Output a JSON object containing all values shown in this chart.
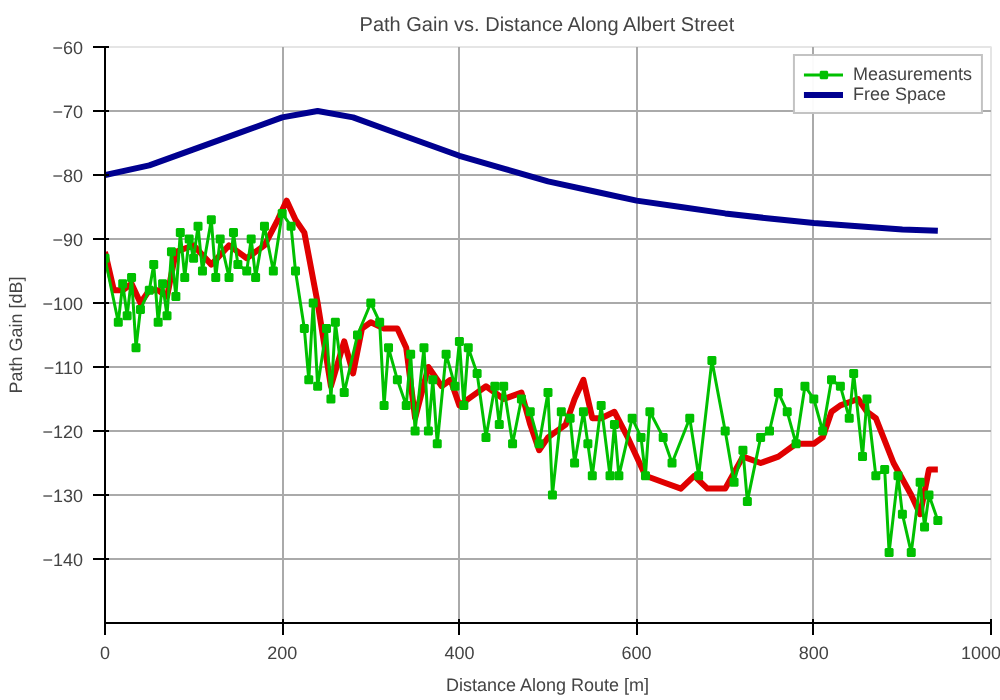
{
  "chart_data": {
    "type": "line",
    "title": "Path Gain vs. Distance Along Albert Street",
    "xlabel": "Distance Along Route [m]",
    "ylabel": "Path Gain [dB]",
    "xlim": [
      0,
      1000
    ],
    "xticks": [
      0,
      200,
      400,
      600,
      800,
      1000
    ],
    "ylim": [
      -150,
      -60
    ],
    "yticks": [
      -140,
      -130,
      -120,
      -110,
      -100,
      -90,
      -80,
      -70,
      -60
    ],
    "grid": true,
    "legend": "top right",
    "line_style": "solid",
    "series": [
      {
        "color": "#e00000",
        "marker": "none",
        "x": [
          0,
          10,
          20,
          30,
          40,
          50,
          60,
          70,
          80,
          100,
          120,
          140,
          160,
          180,
          195,
          205,
          215,
          225,
          240,
          255,
          270,
          280,
          290,
          300,
          315,
          330,
          340,
          350,
          365,
          380,
          390,
          400,
          420,
          430,
          450,
          470,
          480,
          490,
          500,
          520,
          530,
          540,
          550,
          560,
          575,
          590,
          610,
          630,
          650,
          665,
          680,
          700,
          720,
          740,
          760,
          780,
          800,
          810,
          820,
          830,
          850,
          860,
          870,
          890,
          910,
          920,
          930,
          940
        ],
        "values": [
          -92,
          -98,
          -98,
          -97,
          -100,
          -98,
          -98,
          -99,
          -92,
          -91,
          -94,
          -91,
          -93,
          -91,
          -87,
          -84,
          -87,
          -89,
          -100,
          -113,
          -106,
          -111,
          -104,
          -103,
          -104,
          -104,
          -107,
          -118,
          -110,
          -113,
          -112,
          -116,
          -114,
          -113,
          -115,
          -114,
          -119,
          -123,
          -121,
          -119,
          -115,
          -112,
          -118,
          -118,
          -117,
          -121,
          -127,
          -128,
          -129,
          -127,
          -129,
          -129,
          -124,
          -125,
          -124,
          -122,
          -122,
          -121,
          -117,
          -116,
          -115,
          -117,
          -118,
          -125,
          -130,
          -133,
          -126,
          -126
        ]
      },
      {
        "name": "Measurements",
        "color": "#00c000",
        "marker": "square",
        "x": [
          0,
          15,
          20,
          25,
          30,
          35,
          40,
          50,
          55,
          60,
          65,
          70,
          75,
          80,
          85,
          90,
          95,
          100,
          105,
          110,
          120,
          125,
          130,
          140,
          145,
          150,
          160,
          165,
          170,
          180,
          190,
          200,
          210,
          215,
          225,
          230,
          235,
          240,
          250,
          255,
          260,
          270,
          285,
          300,
          310,
          315,
          320,
          330,
          340,
          345,
          350,
          360,
          365,
          370,
          375,
          385,
          395,
          400,
          405,
          410,
          420,
          430,
          440,
          445,
          450,
          460,
          470,
          480,
          490,
          500,
          505,
          515,
          525,
          530,
          540,
          545,
          550,
          560,
          570,
          575,
          580,
          595,
          605,
          610,
          615,
          630,
          640,
          660,
          670,
          685,
          700,
          710,
          720,
          725,
          740,
          750,
          760,
          770,
          780,
          790,
          800,
          810,
          820,
          830,
          840,
          845,
          855,
          860,
          870,
          880,
          885,
          895,
          900,
          910,
          920,
          925,
          930,
          940
        ],
        "values": [
          -93,
          -103,
          -97,
          -102,
          -96,
          -107,
          -101,
          -98,
          -94,
          -103,
          -97,
          -102,
          -92,
          -99,
          -89,
          -96,
          -90,
          -93,
          -88,
          -95,
          -87,
          -96,
          -90,
          -96,
          -89,
          -94,
          -95,
          -90,
          -96,
          -88,
          -95,
          -86,
          -88,
          -95,
          -104,
          -112,
          -100,
          -113,
          -104,
          -115,
          -103,
          -114,
          -105,
          -100,
          -103,
          -116,
          -107,
          -112,
          -116,
          -108,
          -120,
          -107,
          -120,
          -112,
          -122,
          -108,
          -113,
          -106,
          -116,
          -107,
          -111,
          -121,
          -113,
          -119,
          -113,
          -122,
          -115,
          -117,
          -122,
          -114,
          -130,
          -117,
          -118,
          -125,
          -117,
          -122,
          -127,
          -116,
          -127,
          -119,
          -127,
          -118,
          -121,
          -127,
          -117,
          -121,
          -125,
          -118,
          -127,
          -109,
          -120,
          -128,
          -123,
          -131,
          -121,
          -120,
          -114,
          -117,
          -122,
          -113,
          -115,
          -120,
          -112,
          -113,
          -118,
          -111,
          -124,
          -115,
          -127,
          -126,
          -139,
          -127,
          -133,
          -139,
          -128,
          -135,
          -130,
          -134
        ]
      },
      {
        "name": "Free Space",
        "color": "#000090",
        "marker": "none",
        "x": [
          0,
          50,
          100,
          150,
          200,
          240,
          280,
          320,
          360,
          400,
          450,
          500,
          550,
          600,
          650,
          700,
          750,
          800,
          850,
          900,
          940
        ],
        "values": [
          -80,
          -78.5,
          -76,
          -73.5,
          -71,
          -70,
          -71,
          -73,
          -75,
          -77,
          -79,
          -81,
          -82.5,
          -84,
          -85,
          -86,
          -86.8,
          -87.5,
          -88,
          -88.5,
          -88.7
        ]
      }
    ]
  }
}
